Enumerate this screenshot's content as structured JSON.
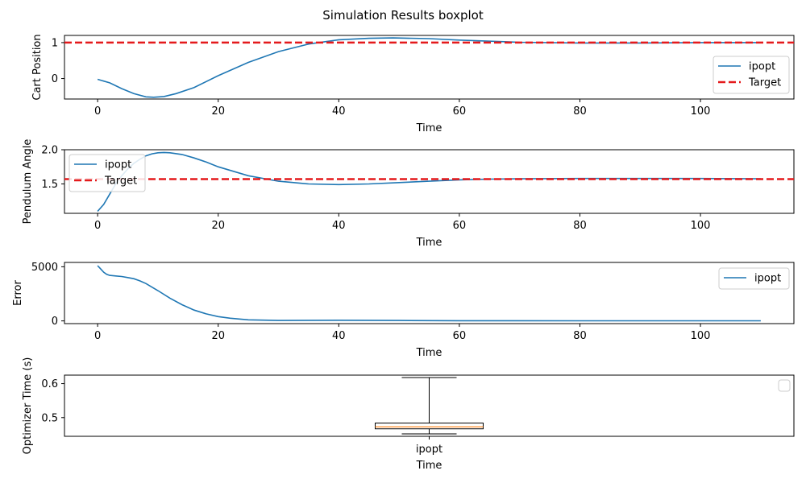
{
  "figure": {
    "title": "Simulation Results boxplot"
  },
  "chart_data": [
    {
      "type": "line",
      "xlabel": "Time",
      "ylabel": "Cart Position",
      "xlim": [
        -5.5,
        115.5
      ],
      "ylim": [
        -0.57,
        1.2
      ],
      "xticks": [
        0,
        20,
        40,
        60,
        80,
        100
      ],
      "yticks": [
        0,
        1
      ],
      "legend": "right",
      "series": [
        {
          "name": "ipopt",
          "color": "#1f77b4",
          "style": "solid",
          "x": [
            0,
            2,
            4,
            6,
            8,
            9.3,
            11,
            13,
            16,
            20,
            25,
            30,
            35,
            40,
            45,
            49,
            55,
            60,
            70,
            80,
            90,
            100,
            110
          ],
          "y": [
            -0.02,
            -0.12,
            -0.28,
            -0.42,
            -0.51,
            -0.52,
            -0.5,
            -0.42,
            -0.25,
            0.08,
            0.45,
            0.75,
            0.96,
            1.08,
            1.12,
            1.13,
            1.11,
            1.07,
            1.01,
            0.99,
            0.99,
            1.0,
            1.0
          ]
        },
        {
          "name": "Target",
          "color": "#e41a1c",
          "style": "dashed",
          "y_const": 1.0
        }
      ]
    },
    {
      "type": "line",
      "xlabel": "Time",
      "ylabel": "Pendulum Angle",
      "xlim": [
        -5.5,
        115.5
      ],
      "ylim": [
        1.07,
        2.0
      ],
      "xticks": [
        0,
        20,
        40,
        60,
        80,
        100
      ],
      "yticks": [
        1.5,
        2.0
      ],
      "legend": "upper left",
      "series": [
        {
          "name": "ipopt",
          "color": "#1f77b4",
          "style": "solid",
          "x": [
            0,
            1,
            2,
            3,
            4,
            5,
            6,
            7,
            8,
            9,
            10,
            11,
            12,
            14,
            16,
            18,
            20,
            25,
            30,
            35,
            40,
            45,
            50,
            55,
            60,
            65,
            70,
            80,
            90,
            100,
            110
          ],
          "y": [
            1.1,
            1.2,
            1.35,
            1.5,
            1.62,
            1.72,
            1.8,
            1.86,
            1.91,
            1.94,
            1.955,
            1.96,
            1.955,
            1.93,
            1.88,
            1.82,
            1.75,
            1.62,
            1.54,
            1.5,
            1.49,
            1.5,
            1.52,
            1.54,
            1.56,
            1.57,
            1.575,
            1.58,
            1.58,
            1.58,
            1.575
          ]
        },
        {
          "name": "Target",
          "color": "#e41a1c",
          "style": "dashed",
          "y_const": 1.5708
        }
      ]
    },
    {
      "type": "line",
      "xlabel": "Time",
      "ylabel": "Error",
      "xlim": [
        -5.5,
        115.5
      ],
      "ylim": [
        -250,
        5400
      ],
      "xticks": [
        0,
        20,
        40,
        60,
        80,
        100
      ],
      "yticks": [
        0,
        5000
      ],
      "legend": "upper right",
      "series": [
        {
          "name": "ipopt",
          "color": "#1f77b4",
          "style": "solid",
          "x": [
            0,
            0.5,
            1,
            1.5,
            2,
            3,
            4,
            5,
            6,
            7,
            8,
            10,
            12,
            14,
            16,
            18,
            20,
            22,
            25,
            30,
            40,
            50,
            60,
            80,
            100,
            110
          ],
          "y": [
            5100,
            4800,
            4500,
            4300,
            4200,
            4150,
            4100,
            4000,
            3900,
            3700,
            3450,
            2800,
            2100,
            1500,
            1000,
            650,
            400,
            250,
            100,
            40,
            60,
            40,
            20,
            10,
            10,
            10
          ]
        }
      ]
    },
    {
      "type": "box",
      "xlabel": "Time",
      "ylabel": "Optimizer Time (s)",
      "categories": [
        "ipopt"
      ],
      "ylim": [
        0.445,
        0.625
      ],
      "yticks": [
        0.5,
        0.6
      ],
      "legend": "empty",
      "boxes": [
        {
          "name": "ipopt",
          "whisker_low": 0.452,
          "q1": 0.467,
          "median": 0.473,
          "q3": 0.484,
          "whisker_high": 0.618
        }
      ]
    }
  ],
  "colors": {
    "ipopt": "#1f77b4",
    "target": "#e41a1c",
    "box_median": "#ff7f0e",
    "box_fill": "#ffffff"
  }
}
